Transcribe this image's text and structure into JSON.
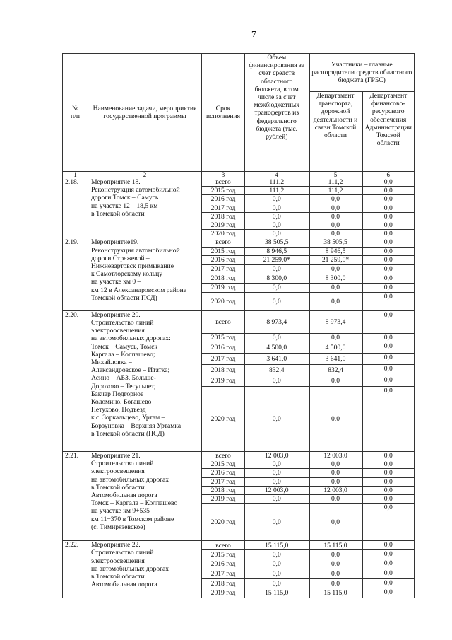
{
  "page_number": "7",
  "header": {
    "col_no": "№\nп/п",
    "col_name": "Наименование задачи, мероприятия государственной программы",
    "col_term": "Срок исполнения",
    "col_volume": "Объем финансирования за счет средств областного бюджета, в том числе за счет межбюджетных трансфертов из федерального бюджета (тыс. рублей)",
    "col_participants": "Участники – главные распорядители средств областного бюджета (ГРБС)",
    "col_dept_transport": "Департамент транспорта, дорожной деятельности и связи Томской области",
    "col_dept_finance": "Департамент финансово-ресурсного обеспечения Администрации Томской области",
    "col_numbers": [
      "1",
      "2",
      "3",
      "4",
      "5",
      "6"
    ]
  },
  "tasks": [
    {
      "num": "2.18.",
      "name": "Мероприятие 18.\nРеконструкция автомобильной дороги Томск – Самусь\nна участке 12 – 18,5 км\nв Томской области",
      "rows": [
        {
          "period": "всего",
          "total": "111,2",
          "transport": "111,2",
          "finance": "0,0"
        },
        {
          "period": "2015 год",
          "total": "111,2",
          "transport": "111,2",
          "finance": "0,0"
        },
        {
          "period": "2016 год",
          "total": "0,0",
          "transport": "0,0",
          "finance": "0,0"
        },
        {
          "period": "2017 год",
          "total": "0,0",
          "transport": "0,0",
          "finance": "0,0"
        },
        {
          "period": "2018 год",
          "total": "0,0",
          "transport": "0,0",
          "finance": "0,0"
        },
        {
          "period": "2019 год",
          "total": "0,0",
          "transport": "0,0",
          "finance": "0,0"
        },
        {
          "period": "2020 год",
          "total": "0,0",
          "transport": "0,0",
          "finance": "0,0"
        }
      ]
    },
    {
      "num": "2.19.",
      "name": "Мероприятие19.\nРеконструкция автомобильной дороги Стрежевой –\nНижневартовск примыкание\nк Самотлорскому кольцу\nна участке км 0 –\nкм 12 в Александровском районе Томской области ПСД)",
      "rows": [
        {
          "period": "всего",
          "total": "38 505,5",
          "transport": "38 505,5",
          "finance": "0,0"
        },
        {
          "period": "2015 год",
          "total": "8 946,5",
          "transport": "8 946,5",
          "finance": "0,0"
        },
        {
          "period": "2016 год",
          "total": "21 259,0*",
          "transport": "21 259,0*",
          "finance": "0,0"
        },
        {
          "period": "2017 год",
          "total": "0,0",
          "transport": "0,0",
          "finance": "0,0"
        },
        {
          "period": "2018 год",
          "total": "8 300,0",
          "transport": "8 300,0",
          "finance": "0,0"
        },
        {
          "period": "2019 год",
          "total": "0,0",
          "transport": "0,0",
          "finance": "0,0"
        },
        {
          "period": "2020 год",
          "total": "0,0",
          "transport": "0,0",
          "finance": "0,0"
        }
      ]
    },
    {
      "num": "2.20.",
      "name": "Мероприятие 20.\nСтроительство линий\nэлектроосвещения\nна автомобильных дорогах:\nТомск – Самусь, Томск –\nКаргала – Колпашево;\nМихайловка –\nАлександровское – Итатка;\nАсино – АБЗ, Больше-\nДорохово – Тегульдет,\nБакчар   Подгорное\nКоломино, Богашево –\nПетухово, Подъезд\nк с. Зоркальцево, Уртам –\nБорзуновка – Верхняя Уртамка\nв Томской области (ПСД)",
      "rows": [
        {
          "period": "всего",
          "total": "8 973,4",
          "transport": "8 973,4",
          "finance": "0,0"
        },
        {
          "period": "2015 год",
          "total": "0,0",
          "transport": "0,0",
          "finance": "0,0"
        },
        {
          "period": "2016 год",
          "total": "4 500,0",
          "transport": "4 500,0",
          "finance": "0,0"
        },
        {
          "period": "2017 год",
          "total": "3 641,0",
          "transport": "3 641,0",
          "finance": "0,0"
        },
        {
          "period": "2018 год",
          "total": "832,4",
          "transport": "832,4",
          "finance": "0,0"
        },
        {
          "period": "2019 год",
          "total": "0,0",
          "transport": "0,0",
          "finance": "0,0"
        },
        {
          "period": "2020 год",
          "total": "0,0",
          "transport": "0,0",
          "finance": "0,0"
        }
      ]
    },
    {
      "num": "2.21.",
      "name": "Мероприятие 21.\nСтроительство линий\nэлектроосвещения\nна автомобильных дорогах\nв Томской области.\nАвтомобильная дорога\nТомск – Каргала – Колпашево\nна участке км 9+535 –\nкм 11−370 в Томском районе\n(с. Тимирязевское)",
      "rows": [
        {
          "period": "всего",
          "total": "12 003,0",
          "transport": "12 003,0",
          "finance": "0,0"
        },
        {
          "period": "2015 год",
          "total": "0,0",
          "transport": "0,0",
          "finance": "0,0"
        },
        {
          "period": "2016 год",
          "total": "0,0",
          "transport": "0,0",
          "finance": "0,0"
        },
        {
          "period": "2017 год",
          "total": "0,0",
          "transport": "0,0",
          "finance": "0,0"
        },
        {
          "period": "2018 год",
          "total": "12 003,0",
          "transport": "12 003,0",
          "finance": "0,0"
        },
        {
          "period": "2019 год",
          "total": "0,0",
          "transport": "0,0",
          "finance": "0,0"
        },
        {
          "period": "2020 год",
          "total": "0,0",
          "transport": "0,0",
          "finance": "0,0"
        }
      ]
    },
    {
      "num": "2.22.",
      "name": "Мероприятие 22.\nСтроительство линий\nэлектроосвещения\nна автомобильных дорогах\nв Томской области.\nАвтомобильная дорога",
      "rows": [
        {
          "period": "всего",
          "total": "15 115,0",
          "transport": "15 115,0",
          "finance": "0,0"
        },
        {
          "period": "2015 год",
          "total": "0,0",
          "transport": "0,0",
          "finance": "0,0"
        },
        {
          "period": "2016 год",
          "total": "0,0",
          "transport": "0,0",
          "finance": "0,0"
        },
        {
          "period": "2017 год",
          "total": "0,0",
          "transport": "0,0",
          "finance": "0,0"
        },
        {
          "period": "2018 год",
          "total": "0,0",
          "transport": "0,0",
          "finance": "0,0"
        },
        {
          "period": "2019 год",
          "total": "15 115,0",
          "transport": "15 115,0",
          "finance": "0,0"
        }
      ]
    }
  ]
}
